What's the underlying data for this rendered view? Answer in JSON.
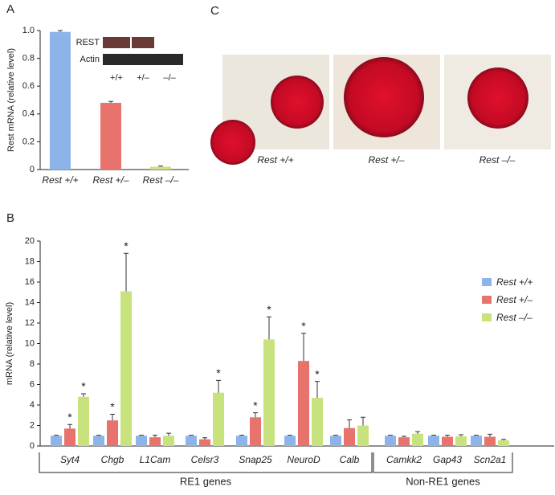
{
  "chart_data": [
    {
      "type": "bar",
      "label": "A",
      "y_label": "Rest mRNA (relative level)",
      "categories": [
        "Rest +/+",
        "Rest +/–",
        "Rest –/–"
      ],
      "values": [
        0.99,
        0.48,
        0.02
      ],
      "errors": [
        0.01,
        0.01,
        0.005
      ],
      "colors": [
        "#8db4e8",
        "#e8736c",
        "#c8e27e"
      ],
      "ylim": [
        0,
        1
      ],
      "yticks": [
        0,
        0.2,
        0.4,
        0.6,
        0.8,
        {
          "value": 1,
          "label": "1.0"
        }
      ],
      "inset": {
        "rows": [
          "REST",
          "Actin"
        ],
        "columns": [
          "+/+",
          "+/–",
          "–/–"
        ]
      }
    },
    {
      "type": "grouped_bar",
      "label": "B",
      "y_label": "mRNA (relative level)",
      "categories": [
        "Syt4",
        "Chgb",
        "L1Cam",
        "Celsr3",
        "Snap25",
        "NeuroD",
        "Calb",
        "Camkk2",
        "Gap43",
        "Scn2a1"
      ],
      "series": [
        {
          "name": "Rest +/+",
          "color": "#8db4e8",
          "values": [
            1,
            1,
            1,
            1,
            1,
            1,
            1,
            1,
            1,
            1
          ],
          "errors": [
            0.05,
            0.05,
            0.05,
            0.05,
            0.05,
            0.05,
            0.05,
            0.05,
            0.05,
            0.05
          ],
          "stars": [
            null,
            null,
            null,
            null,
            null,
            null,
            null,
            null,
            null,
            null
          ]
        },
        {
          "name": "Rest +/–",
          "color": "#e8736c",
          "values": [
            1.7,
            2.5,
            0.85,
            0.65,
            2.8,
            8.3,
            1.75,
            0.85,
            0.9,
            0.9
          ],
          "errors": [
            0.4,
            0.6,
            0.2,
            0.15,
            0.45,
            2.7,
            0.8,
            0.1,
            0.15,
            0.25
          ],
          "stars": [
            "*",
            "*",
            null,
            null,
            "*",
            "*",
            null,
            null,
            null,
            null
          ]
        },
        {
          "name": "Rest –/–",
          "color": "#c8e27e",
          "values": [
            4.8,
            15.1,
            1,
            5.2,
            10.4,
            4.7,
            2,
            1.2,
            0.95,
            0.55
          ],
          "errors": [
            0.3,
            3.7,
            0.25,
            1.2,
            2.2,
            1.6,
            0.8,
            0.2,
            0.15,
            0.1
          ],
          "stars": [
            "*",
            "*",
            null,
            "*",
            "*",
            "*",
            null,
            null,
            null,
            null
          ]
        }
      ],
      "groups": [
        {
          "name": "RE1 genes",
          "from": 0,
          "to": 6
        },
        {
          "name": "Non-RE1 genes",
          "from": 7,
          "to": 9
        }
      ],
      "ylim": [
        0,
        20
      ],
      "yticks": [
        0,
        2,
        4,
        6,
        8,
        10,
        12,
        14,
        16,
        18,
        20
      ]
    }
  ],
  "panel_c": {
    "label": "C",
    "captions": [
      "Rest +/+",
      "Rest +/–",
      "Rest –/–"
    ]
  }
}
